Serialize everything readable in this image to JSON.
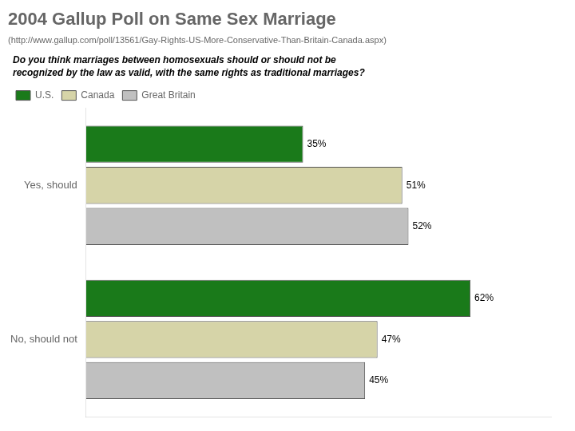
{
  "chart_data": {
    "type": "bar",
    "orientation": "horizontal",
    "title": "2004 Gallup Poll on Same Sex Marriage",
    "subtitle": "(http://www.gallup.com/poll/13561/Gay-Rights-US-More-Conservative-Than-Britain-Canada.aspx)",
    "annotations": [
      "Do you think marriages between homosexuals should or should not be\nrecognized by the law as valid, with the same rights as traditional marriages?"
    ],
    "categories": [
      "Yes, should",
      "No, should not"
    ],
    "series": [
      {
        "name": "U.S.",
        "color": "#1a7a1a",
        "values": [
          35,
          62
        ],
        "value_labels": [
          "35%",
          "62%"
        ]
      },
      {
        "name": "Canada",
        "color": "#d6d4a8",
        "values": [
          51,
          47
        ],
        "value_labels": [
          "51%",
          "47%"
        ]
      },
      {
        "name": "Great Britain",
        "color": "#c0c0c0",
        "values": [
          52,
          45
        ],
        "value_labels": [
          "52%",
          "45%"
        ]
      }
    ],
    "xlim": [
      0,
      75
    ],
    "grid": false,
    "legend": "top",
    "data_labels": true,
    "tick_labels": "y"
  }
}
